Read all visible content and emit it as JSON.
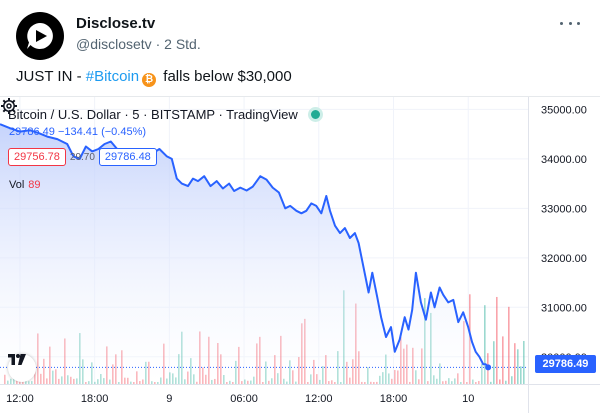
{
  "tweet": {
    "author_name": "Disclose.tv",
    "handle": "@disclosetv",
    "separator": "·",
    "time": "2 Std.",
    "text_prefix": "JUST IN - ",
    "hashtag": "#Bitcoin",
    "text_suffix": " falls below $30,000",
    "icons": {
      "avatar": "disclose-tv-logo",
      "more": "more-horizontal-icon",
      "emoji": "bitcoin-emoji"
    }
  },
  "chart": {
    "title": "Bitcoin / U.S. Dollar · 5 · BITSTAMP · TradingView",
    "legend_last": "29786.49",
    "legend_change": "−134.41 (−0.45%)",
    "bid": "29756.78",
    "spread": "29.70",
    "ask": "29786.48",
    "volume_label": "Vol",
    "volume_value": "89",
    "last_price_tag": "29786.49",
    "icons": {
      "logo": "tradingview-logo-icon",
      "settings": "gear-icon",
      "status": "market-status-dot"
    },
    "colors": {
      "line": "#2962ff",
      "fill_top": "#bcccfb",
      "up": "#22ab94",
      "down": "#f23645"
    }
  },
  "chart_data": {
    "type": "area",
    "title": "Bitcoin / U.S. Dollar · 5 · BITSTAMP · TradingView",
    "y_ticks": [
      "35000.00",
      "34000.00",
      "33000.00",
      "32000.00",
      "31000.00",
      "30000.00"
    ],
    "y_tick_values": [
      35000,
      34000,
      33000,
      32000,
      31000,
      30000
    ],
    "ylim": [
      29450,
      35250
    ],
    "x_ticks": [
      "12:00",
      "18:00",
      "9",
      "06:00",
      "12:00",
      "18:00",
      "10"
    ],
    "x_tick_hours": [
      12,
      18,
      24,
      30,
      36,
      42,
      48
    ],
    "xlim": [
      10.4,
      52.8
    ],
    "grid": true,
    "series": [
      {
        "x": [
          10.4,
          11.2,
          12,
          12.8,
          13.5,
          14.2,
          15,
          15.8,
          16.3,
          16.8,
          17.3,
          17.8,
          18.3,
          18.8,
          19.3,
          19.8,
          20.3,
          20.8,
          21.3,
          22,
          22.6,
          23.2,
          23.8,
          24.2,
          24.6,
          25,
          25.5,
          25.9,
          26.3,
          26.8,
          27.3,
          27.8,
          28.3,
          28.8,
          29.2,
          29.7,
          30.2,
          30.7,
          31.3,
          31.8,
          32.3,
          32.8,
          33.3,
          33.7,
          34.2,
          34.6,
          35,
          35.4,
          35.8,
          36.2,
          36.6,
          36.9,
          37.3,
          37.7,
          38.1,
          38.5,
          38.9,
          39.2,
          39.6,
          40,
          40.3,
          40.7,
          41,
          41.4,
          41.8,
          42.1,
          42.5,
          42.9,
          43.2,
          43.5,
          43.8,
          44.2,
          44.6,
          45,
          45.3,
          45.7,
          46,
          46.4,
          46.8,
          47.2,
          47.6,
          48,
          48.3,
          48.6,
          48.9,
          49.2,
          49.4,
          49.6
        ],
        "y": [
          34700,
          34620,
          34550,
          34580,
          34520,
          34450,
          34400,
          34300,
          34050,
          34000,
          34250,
          34150,
          34200,
          34300,
          34350,
          34200,
          34080,
          34050,
          34100,
          34150,
          34100,
          34200,
          34050,
          34000,
          33600,
          33500,
          33450,
          33600,
          33550,
          33650,
          33450,
          33550,
          33400,
          33500,
          33350,
          33420,
          33360,
          33440,
          33650,
          33580,
          33420,
          33320,
          33000,
          33050,
          32950,
          32900,
          32950,
          33100,
          33050,
          32900,
          33250,
          32950,
          32650,
          32500,
          32600,
          32400,
          32500,
          32300,
          31800,
          31300,
          31700,
          31200,
          30800,
          30400,
          30600,
          30100,
          30350,
          30800,
          30550,
          30950,
          31700,
          31100,
          30750,
          31300,
          31000,
          31400,
          31250,
          31100,
          31150,
          30700,
          30900,
          30600,
          30300,
          30100,
          30000,
          29850,
          29850,
          29786.49
        ]
      }
    ]
  }
}
